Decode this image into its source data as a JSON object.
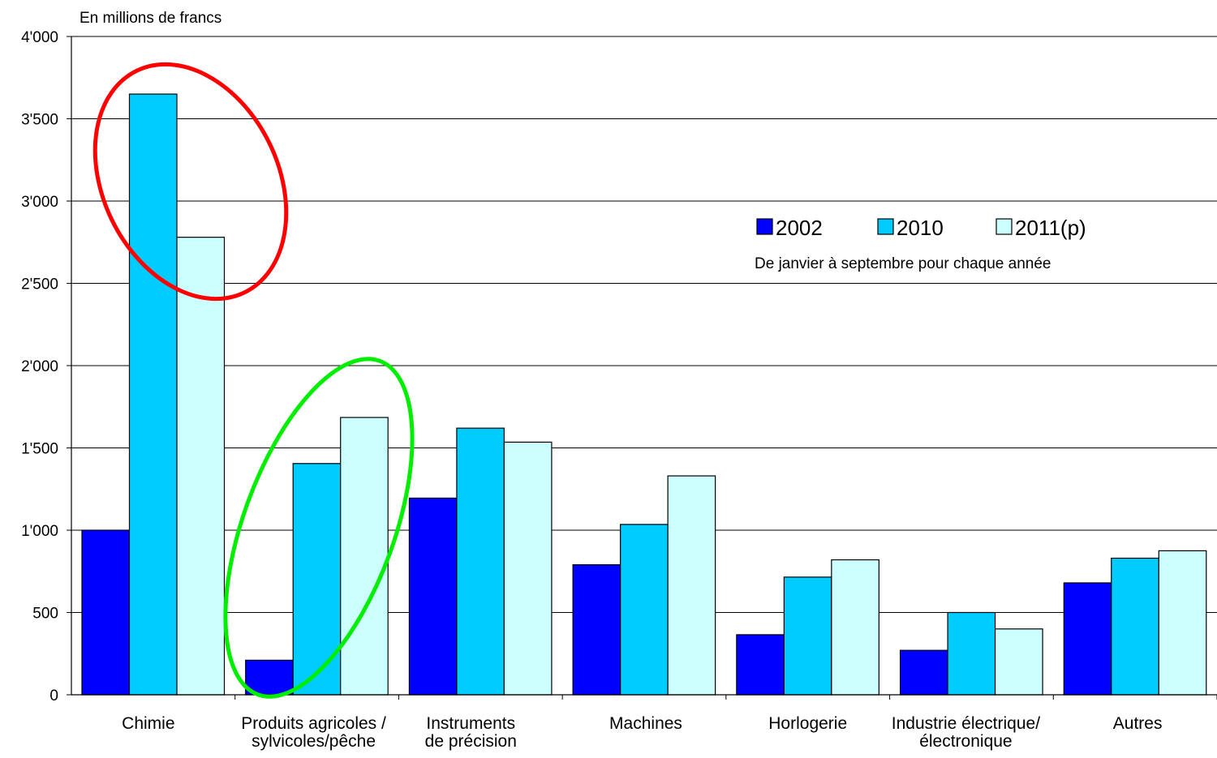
{
  "chart_data": {
    "type": "bar",
    "unit_label": "En millions de francs",
    "categories": [
      [
        "Chimie"
      ],
      [
        "Produits agricoles /",
        "sylvicoles/pêche"
      ],
      [
        "Instruments",
        "de précision"
      ],
      [
        "Machines"
      ],
      [
        "Horlogerie"
      ],
      [
        "Industrie électrique/",
        "électronique"
      ],
      [
        "Autres"
      ]
    ],
    "series": [
      {
        "name": "2002",
        "color": "#0000ff",
        "values": [
          1000,
          210,
          1195,
          790,
          365,
          270,
          680
        ]
      },
      {
        "name": "2010",
        "color": "#00ccff",
        "values": [
          3650,
          1405,
          1620,
          1035,
          715,
          500,
          830
        ]
      },
      {
        "name": "2011(p)",
        "color": "#ccffff",
        "values": [
          2780,
          1685,
          1535,
          1330,
          820,
          400,
          875
        ]
      }
    ],
    "ylim": [
      0,
      4000
    ],
    "yticks": [
      0,
      500,
      1000,
      1500,
      2000,
      2500,
      3000,
      3500,
      4000
    ],
    "ytick_labels": [
      "0",
      "500",
      "1'000",
      "1'500",
      "2'000",
      "2'500",
      "3'000",
      "3'500",
      "4'000"
    ],
    "grid": true,
    "legend_position": "top-right",
    "note": "De janvier à septembre pour chaque année",
    "annotations": [
      {
        "shape": "ellipse",
        "color": "#ff0000",
        "highlights": "Chimie"
      },
      {
        "shape": "ellipse",
        "color": "#00ee00",
        "highlights": "Produits agricoles / sylvicoles/pêche"
      }
    ]
  }
}
